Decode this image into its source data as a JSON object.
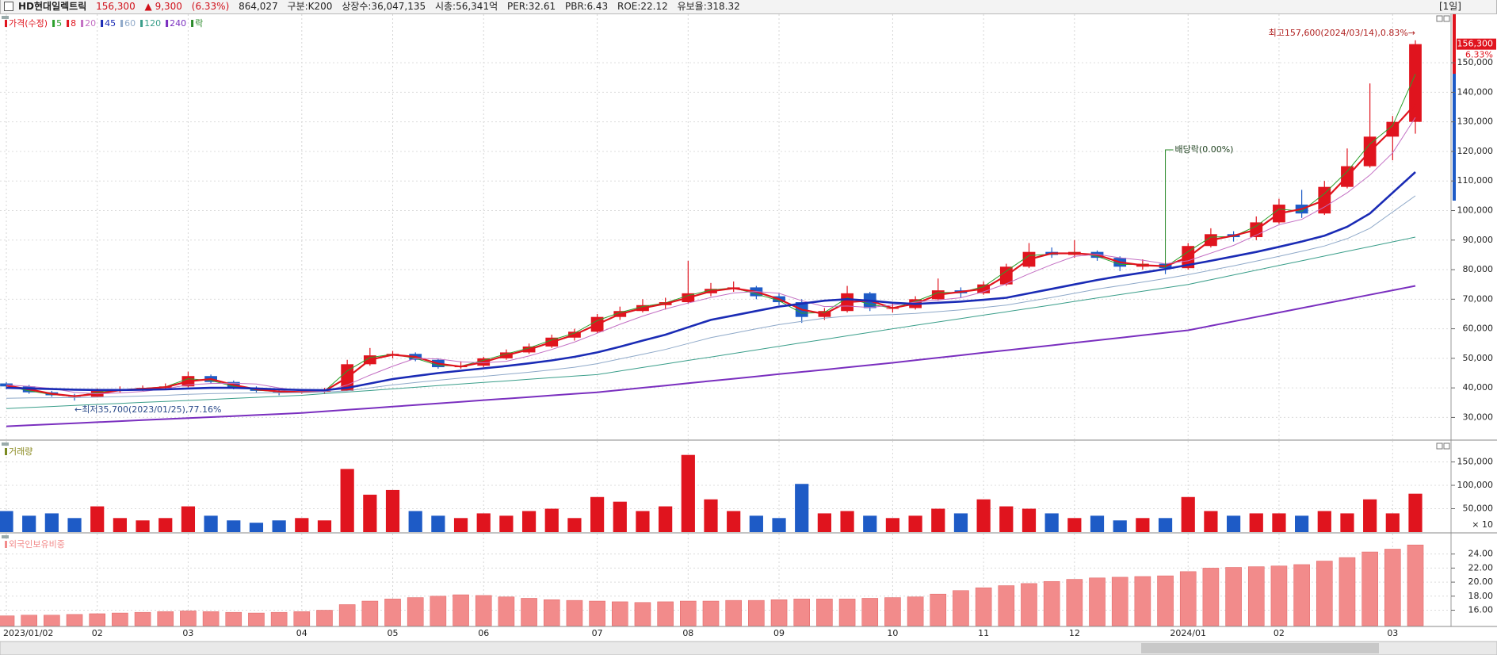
{
  "header": {
    "name": "HD현대일렉트릭",
    "price": "156,300",
    "change": "▲ 9,300",
    "change_rate": "(6.33%)",
    "volume": "864,027",
    "segment": "구분:K200",
    "shares": "상장수:36,047,135",
    "market_cap": "시총:56,341억",
    "per": "PER:32.61",
    "pbr": "PBR:6.43",
    "roe": "ROE:22.12",
    "reserve": "유보율:318.32",
    "period": "[1일]"
  },
  "chart_data": [
    {
      "type": "candlestick",
      "name": "가격(수정)",
      "up_color": "#e0141e",
      "down_color": "#1e5bc6",
      "ex_div_label": "락",
      "ex_div_color": "#2a8a2a",
      "change_tag": "6.33%",
      "categories": [
        "2023/01/02",
        null,
        null,
        null,
        "02",
        null,
        null,
        null,
        "03",
        null,
        null,
        null,
        null,
        "04",
        null,
        null,
        null,
        "05",
        null,
        null,
        null,
        "06",
        null,
        null,
        null,
        null,
        "07",
        null,
        null,
        null,
        "08",
        null,
        null,
        null,
        "09",
        null,
        null,
        null,
        null,
        "10",
        null,
        null,
        null,
        "11",
        null,
        null,
        null,
        "12",
        null,
        null,
        null,
        null,
        "2024/01",
        null,
        null,
        null,
        "02",
        null,
        null,
        null,
        null,
        "03",
        null
      ],
      "open": [
        41500,
        40500,
        38500,
        37500,
        37000,
        39000,
        39500,
        40000,
        40500,
        44000,
        42000,
        40000,
        39000,
        38500,
        38800,
        39000,
        48000,
        51000,
        51500,
        49500,
        47000,
        47500,
        50000,
        52000,
        54000,
        57000,
        59000,
        64000,
        66000,
        68000,
        69000,
        72000,
        73500,
        74000,
        71000,
        69000,
        64000,
        66000,
        72000,
        67000,
        67000,
        70000,
        73000,
        72000,
        75000,
        81000,
        86000,
        85000,
        86000,
        84000,
        81000,
        82000,
        80500,
        88000,
        92000,
        91000,
        96000,
        102000,
        99000,
        108000,
        115000,
        125000,
        130000
      ],
      "high": [
        42000,
        41000,
        39000,
        38000,
        39800,
        40500,
        40800,
        41500,
        45500,
        44500,
        42500,
        40500,
        39500,
        39500,
        40000,
        49500,
        53500,
        52500,
        52000,
        50000,
        49000,
        50500,
        53000,
        55000,
        58000,
        60000,
        65000,
        67500,
        70000,
        70500,
        83000,
        75500,
        76000,
        74500,
        72000,
        70000,
        67000,
        74500,
        72500,
        68500,
        71000,
        77000,
        74000,
        76000,
        82000,
        89000,
        87500,
        90000,
        86500,
        84500,
        83500,
        82500,
        89000,
        94000,
        93000,
        98000,
        104000,
        107000,
        110000,
        121000,
        143000,
        132000,
        157600
      ],
      "low": [
        39500,
        38000,
        37000,
        35700,
        36800,
        38500,
        39000,
        39500,
        40200,
        41500,
        39500,
        38500,
        37500,
        38000,
        38000,
        39000,
        47500,
        50000,
        49000,
        46500,
        46500,
        47000,
        49500,
        51500,
        53500,
        56000,
        58500,
        63000,
        65500,
        66500,
        68500,
        71000,
        72500,
        70000,
        68000,
        62000,
        63000,
        65500,
        66000,
        65500,
        66500,
        69500,
        70500,
        71500,
        74500,
        80500,
        84000,
        84000,
        83000,
        79500,
        80000,
        78500,
        80000,
        87500,
        89500,
        90000,
        95500,
        97500,
        98500,
        107500,
        114500,
        117000,
        126000
      ],
      "close": [
        40500,
        38500,
        37500,
        37000,
        39000,
        39500,
        40000,
        40500,
        44000,
        42000,
        40000,
        39000,
        38500,
        38800,
        39000,
        48000,
        51000,
        51500,
        49500,
        47000,
        47500,
        50000,
        52000,
        54000,
        57000,
        59000,
        64000,
        66000,
        68000,
        69000,
        72000,
        73500,
        74000,
        71000,
        69000,
        64000,
        66000,
        72000,
        67000,
        67000,
        70000,
        73000,
        72000,
        75000,
        81000,
        86000,
        85000,
        86000,
        84000,
        81000,
        82000,
        80500,
        88000,
        92000,
        91000,
        96000,
        102000,
        99000,
        108000,
        115000,
        125000,
        130000,
        156300
      ],
      "series": [
        {
          "name": "5",
          "color": "#2ca02c",
          "width": 1,
          "values": [
            40650,
            39000,
            37750,
            37100,
            38500,
            39350,
            39850,
            40350,
            43100,
            42500,
            40500,
            39250,
            38650,
            38700,
            38950,
            45750,
            50250,
            51350,
            50000,
            47600,
            47350,
            49350,
            51500,
            53500,
            56250,
            58500,
            62750,
            65500,
            67500,
            68750,
            71250,
            73100,
            73850,
            71750,
            69500,
            65250,
            65500,
            70500,
            68250,
            67000,
            69250,
            72250,
            72250,
            74250,
            79500,
            84750,
            85250,
            85750,
            84500,
            81750,
            81750,
            80850,
            86100,
            91000,
            91250,
            94750,
            100500,
            99750,
            105750,
            113250,
            122500,
            128750,
            146150
          ]
        },
        {
          "name": "8",
          "color": "#e0141e",
          "width": 2.2,
          "values": [
            40800,
            39500,
            38000,
            37200,
            38000,
            39200,
            39700,
            40200,
            42200,
            43000,
            41000,
            39500,
            38800,
            38600,
            38900,
            43500,
            49500,
            51200,
            50500,
            48200,
            47200,
            48700,
            51000,
            53000,
            55500,
            58000,
            61500,
            65000,
            67000,
            68500,
            70500,
            72700,
            73700,
            72500,
            70000,
            66500,
            65000,
            69000,
            69500,
            67000,
            68500,
            71500,
            72500,
            73500,
            78000,
            83500,
            85500,
            85500,
            85000,
            82500,
            81500,
            81200,
            84200,
            90000,
            91500,
            93500,
            99000,
            100500,
            103500,
            111500,
            120000,
            127500,
            136000
          ]
        },
        {
          "name": "20",
          "color": "#c36fc3",
          "width": 1,
          "values": [
            41000,
            40500,
            39800,
            38500,
            38000,
            38300,
            38800,
            39700,
            41000,
            41500,
            41600,
            41300,
            40000,
            39000,
            38800,
            41000,
            44300,
            47300,
            50000,
            49800,
            48800,
            48500,
            49000,
            50800,
            53000,
            55500,
            58500,
            61500,
            64300,
            66700,
            68700,
            70600,
            72100,
            72600,
            72000,
            69500,
            67500,
            67700,
            67200,
            68000,
            69000,
            69700,
            70500,
            72500,
            75200,
            78600,
            81700,
            84500,
            85200,
            84000,
            83200,
            82000,
            83000,
            85600,
            88200,
            91700,
            95200,
            97000,
            101200,
            106000,
            112000,
            119500,
            131500
          ]
        },
        {
          "name": "45",
          "color": "#1a2bb5",
          "width": 2.6,
          "values": [
            40000,
            39800,
            39600,
            39400,
            39300,
            39300,
            39400,
            39500,
            39800,
            40000,
            40000,
            39800,
            39500,
            39300,
            39200,
            40000,
            41500,
            43000,
            44000,
            45000,
            45800,
            46600,
            47400,
            48300,
            49300,
            50500,
            52000,
            53900,
            56000,
            58000,
            60500,
            63000,
            64500,
            66000,
            67500,
            68500,
            69500,
            70000,
            69500,
            68800,
            68400,
            68800,
            69200,
            69800,
            70500,
            72000,
            73500,
            75000,
            76500,
            77800,
            79000,
            80200,
            81600,
            83000,
            84500,
            86000,
            87700,
            89500,
            91500,
            94500,
            99000,
            106000,
            113000
          ]
        },
        {
          "name": "60",
          "color": "#8fa9c9",
          "width": 1,
          "values": [
            36500,
            36600,
            36650,
            36700,
            36850,
            37000,
            37250,
            37450,
            37800,
            38050,
            38200,
            38300,
            38300,
            38400,
            38600,
            39000,
            40000,
            41000,
            41800,
            42600,
            43300,
            43900,
            44600,
            45300,
            46100,
            47000,
            48200,
            49800,
            51400,
            53000,
            55000,
            57000,
            58500,
            60000,
            61400,
            62500,
            63600,
            64300,
            64600,
            64800,
            65200,
            65800,
            66400,
            67200,
            68000,
            69300,
            70600,
            72000,
            73400,
            74600,
            75800,
            77000,
            78300,
            79800,
            81300,
            82900,
            84500,
            86200,
            88000,
            90500,
            94000,
            99500,
            105000
          ]
        },
        {
          "name": "120",
          "color": "#3a9e8a",
          "width": 1,
          "values": [
            33000,
            33350,
            33700,
            34050,
            34400,
            34750,
            35100,
            35400,
            35750,
            36100,
            36450,
            36800,
            37150,
            37500,
            38050,
            38600,
            39100,
            39650,
            40200,
            40750,
            41300,
            41850,
            42350,
            42900,
            43450,
            44000,
            44500,
            45700,
            46900,
            48100,
            49300,
            50450,
            51650,
            52850,
            54050,
            55250,
            56400,
            57600,
            58800,
            60000,
            61150,
            62300,
            63450,
            64600,
            65750,
            66900,
            68050,
            69250,
            70400,
            71550,
            72700,
            73850,
            75000,
            76600,
            78200,
            79800,
            81400,
            83000,
            84600,
            86200,
            87800,
            89400,
            91000
          ]
        },
        {
          "name": "240",
          "color": "#7a2fbf",
          "width": 2,
          "values": [
            27000,
            27350,
            27700,
            28050,
            28400,
            28750,
            29100,
            29450,
            29800,
            30100,
            30450,
            30800,
            31150,
            31500,
            32050,
            32600,
            33100,
            33650,
            34200,
            34750,
            35300,
            35850,
            36350,
            36900,
            37450,
            38000,
            38500,
            39250,
            40050,
            40800,
            41600,
            42350,
            43100,
            43850,
            44650,
            45400,
            46150,
            46950,
            47700,
            48500,
            49350,
            50200,
            51050,
            51900,
            52700,
            53550,
            54400,
            55250,
            56100,
            56950,
            57800,
            58650,
            59500,
            61000,
            62500,
            64000,
            65500,
            67000,
            68500,
            70000,
            71500,
            73000,
            74500
          ]
        }
      ],
      "annotations": {
        "high": "최고157,600(2024/03/14),0.83%→",
        "low": "←최저35,700(2023/01/25),77.16%",
        "ex_dividend": "배당락(0.00%)"
      },
      "ylim": [
        22600,
        166400
      ],
      "yticks": [
        {
          "value": 30000,
          "label": "30,000"
        },
        {
          "value": 40000,
          "label": "40,000"
        },
        {
          "value": 50000,
          "label": "50,000"
        },
        {
          "value": 60000,
          "label": "60,000"
        },
        {
          "value": 70000,
          "label": "70,000"
        },
        {
          "value": 80000,
          "label": "80,000"
        },
        {
          "value": 90000,
          "label": "90,000"
        },
        {
          "value": 100000,
          "label": "100,000"
        },
        {
          "value": 110000,
          "label": "110,000"
        },
        {
          "value": 120000,
          "label": "120,000"
        },
        {
          "value": 130000,
          "label": "130,000"
        },
        {
          "value": 140000,
          "label": "140,000"
        },
        {
          "value": 150000,
          "label": "150,000"
        }
      ],
      "grid": true
    },
    {
      "type": "bar",
      "title": "거래량",
      "unit_label": "× 10",
      "values": [
        45000,
        35000,
        40000,
        30000,
        55000,
        30000,
        25000,
        30000,
        55000,
        35000,
        25000,
        20000,
        25000,
        30000,
        25000,
        135000,
        80000,
        90000,
        45000,
        35000,
        30000,
        40000,
        35000,
        45000,
        50000,
        30000,
        75000,
        65000,
        45000,
        55000,
        165000,
        70000,
        45000,
        35000,
        30000,
        103000,
        40000,
        45000,
        35000,
        30000,
        35000,
        50000,
        40000,
        70000,
        55000,
        50000,
        40000,
        30000,
        35000,
        25000,
        30000,
        30000,
        75000,
        45000,
        35000,
        40000,
        40000,
        35000,
        45000,
        40000,
        70000,
        40000,
        82000
      ],
      "ylim": [
        0,
        195000
      ],
      "yticks": [
        {
          "value": 50000,
          "label": "50,000"
        },
        {
          "value": 100000,
          "label": "100,000"
        },
        {
          "value": 150000,
          "label": "150,000"
        }
      ]
    },
    {
      "type": "bar",
      "title": "외국인보유비중",
      "color": "#f28b8b",
      "values": [
        15.2,
        15.3,
        15.3,
        15.4,
        15.5,
        15.6,
        15.7,
        15.8,
        15.9,
        15.8,
        15.7,
        15.6,
        15.7,
        15.8,
        16.0,
        16.8,
        17.3,
        17.6,
        17.8,
        18.0,
        18.2,
        18.1,
        17.9,
        17.7,
        17.5,
        17.4,
        17.3,
        17.2,
        17.1,
        17.2,
        17.3,
        17.3,
        17.4,
        17.4,
        17.5,
        17.6,
        17.6,
        17.6,
        17.7,
        17.8,
        17.9,
        18.3,
        18.8,
        19.2,
        19.5,
        19.8,
        20.1,
        20.4,
        20.6,
        20.7,
        20.8,
        20.9,
        21.5,
        22.0,
        22.1,
        22.2,
        22.3,
        22.5,
        23.0,
        23.5,
        24.3,
        24.7,
        25.3
      ],
      "ylim": [
        13.8,
        26.9
      ],
      "yticks": [
        {
          "value": 16,
          "label": "16.00"
        },
        {
          "value": 18,
          "label": "18.00"
        },
        {
          "value": 20,
          "label": "20.00"
        },
        {
          "value": 22,
          "label": "22.00"
        },
        {
          "value": 24,
          "label": "24.00"
        }
      ]
    }
  ]
}
